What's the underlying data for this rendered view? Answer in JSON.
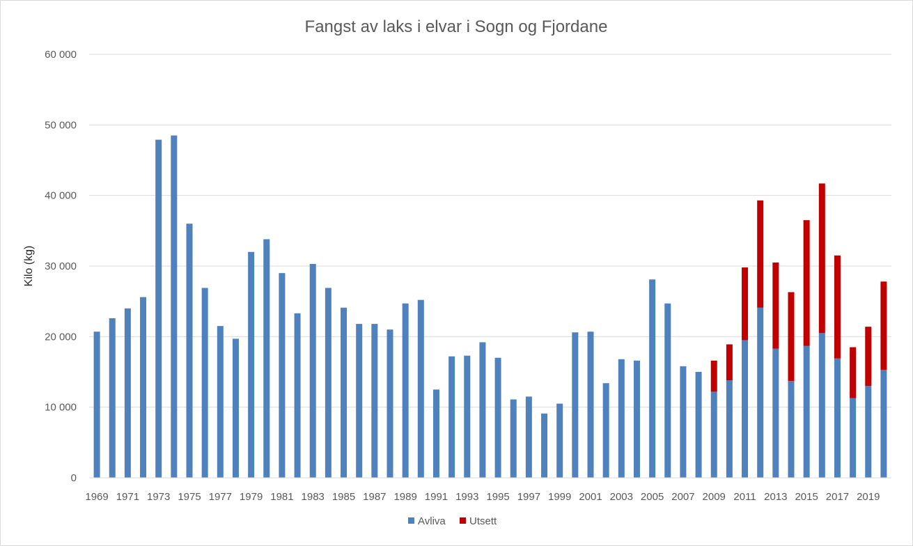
{
  "chart_data": {
    "type": "bar",
    "stacked": true,
    "title": "Fangst av laks i elvar i Sogn og Fjordane",
    "xlabel": "",
    "ylabel": "Kilo (kg)",
    "ylim": [
      0,
      60000
    ],
    "yticks": [
      0,
      10000,
      20000,
      30000,
      40000,
      50000,
      60000
    ],
    "ytick_labels": [
      "0",
      "10 000",
      "20 000",
      "30 000",
      "40 000",
      "50 000",
      "60 000"
    ],
    "grid": true,
    "legend_position": "bottom",
    "categories": [
      "1969",
      "1970",
      "1971",
      "1972",
      "1973",
      "1974",
      "1975",
      "1976",
      "1977",
      "1978",
      "1979",
      "1980",
      "1981",
      "1982",
      "1983",
      "1984",
      "1985",
      "1986",
      "1987",
      "1988",
      "1989",
      "1990",
      "1991",
      "1992",
      "1993",
      "1994",
      "1995",
      "1996",
      "1997",
      "1998",
      "1999",
      "2000",
      "2001",
      "2002",
      "2003",
      "2004",
      "2005",
      "2006",
      "2007",
      "2008",
      "2009",
      "2010",
      "2011",
      "2012",
      "2013",
      "2014",
      "2015",
      "2016",
      "2017",
      "2018",
      "2019",
      "2020"
    ],
    "xtick_labels": [
      "1969",
      "1971",
      "1973",
      "1975",
      "1977",
      "1979",
      "1981",
      "1983",
      "1985",
      "1987",
      "1989",
      "1991",
      "1993",
      "1995",
      "1997",
      "1999",
      "2001",
      "2003",
      "2005",
      "2007",
      "2009",
      "2011",
      "2013",
      "2015",
      "2017",
      "2019"
    ],
    "series": [
      {
        "name": "Avliva",
        "color": "#4f81bd",
        "values": [
          20700,
          22600,
          24000,
          25600,
          47900,
          48500,
          36000,
          26900,
          21500,
          19700,
          32000,
          33800,
          29000,
          23300,
          30300,
          26900,
          24100,
          21800,
          21800,
          21000,
          24700,
          25200,
          12500,
          17200,
          17300,
          19200,
          17000,
          11100,
          11500,
          9100,
          10500,
          20600,
          20700,
          13400,
          16800,
          16600,
          28100,
          24700,
          15800,
          15000,
          12200,
          13800,
          19500,
          24100,
          18300,
          13700,
          18700,
          20500,
          16900,
          11300,
          13000,
          15300
        ]
      },
      {
        "name": "Utsett",
        "color": "#c00000",
        "values": [
          0,
          0,
          0,
          0,
          0,
          0,
          0,
          0,
          0,
          0,
          0,
          0,
          0,
          0,
          0,
          0,
          0,
          0,
          0,
          0,
          0,
          0,
          0,
          0,
          0,
          0,
          0,
          0,
          0,
          0,
          0,
          0,
          0,
          0,
          0,
          0,
          0,
          0,
          0,
          0,
          4400,
          5100,
          10300,
          15200,
          12200,
          12600,
          17800,
          21200,
          14600,
          7200,
          8400,
          12500
        ]
      }
    ]
  }
}
